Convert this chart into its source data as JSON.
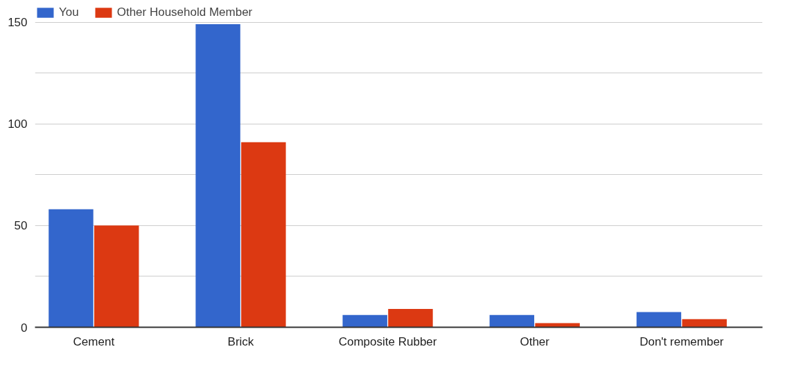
{
  "chart_data": {
    "type": "bar",
    "categories": [
      "Cement",
      "Brick",
      "Composite Rubber",
      "Other",
      "Don't remember"
    ],
    "series": [
      {
        "name": "You",
        "color": "#3366cc",
        "values": [
          58,
          149,
          6,
          6,
          7.5
        ]
      },
      {
        "name": "Other Household Member",
        "color": "#dc3912",
        "values": [
          50,
          91,
          9,
          2,
          4
        ]
      }
    ],
    "ylim": [
      0,
      158
    ],
    "yticks": [
      0,
      {
        "value": 25,
        "label": null
      },
      50,
      {
        "value": 75,
        "label": null
      },
      100,
      {
        "value": 125,
        "label": null
      },
      150
    ],
    "grid": "y",
    "legend": "top left"
  }
}
